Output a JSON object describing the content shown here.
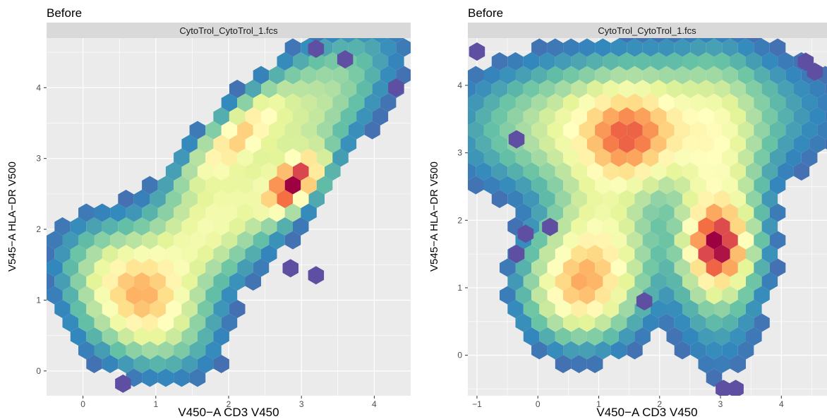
{
  "chart_data": [
    {
      "type": "heatmap",
      "subtype": "hexbin",
      "title": "Before",
      "facet": "CytoTrol_CytoTrol_1.fcs",
      "xlabel": "V450−A CD3 V450",
      "ylabel": "V545−A HLA−DR V500",
      "xlim": [
        -0.5,
        4.5
      ],
      "ylim": [
        -0.35,
        4.7
      ],
      "xticks": [
        0,
        1,
        2,
        3,
        4
      ],
      "yticks": [
        0,
        1,
        2,
        3,
        4
      ],
      "xtick_labels": [
        "0",
        "1",
        "2",
        "3",
        "4"
      ],
      "ytick_labels": [
        "0",
        "1",
        "2",
        "3",
        "4"
      ],
      "grid": true,
      "palette": [
        "#5e4fa2",
        "#3288bd",
        "#66c2a5",
        "#abdda4",
        "#e6f598",
        "#ffffbf",
        "#fee08b",
        "#fdae61",
        "#f46d43",
        "#d53e4f",
        "#9e0142"
      ],
      "density_components": [
        {
          "center": [
            0.75,
            1.05
          ],
          "spread": [
            0.42,
            0.6
          ],
          "rotation_deg": 45,
          "weight": 0.58
        },
        {
          "center": [
            1.75,
            2.05
          ],
          "spread": [
            0.95,
            0.42
          ],
          "rotation_deg": 45,
          "weight": 0.4
        },
        {
          "center": [
            2.9,
            2.65
          ],
          "spread": [
            0.32,
            0.16
          ],
          "rotation_deg": 48,
          "weight": 1.0
        },
        {
          "center": [
            2.1,
            3.3
          ],
          "spread": [
            0.55,
            0.18
          ],
          "rotation_deg": 45,
          "weight": 0.5
        },
        {
          "center": [
            3.1,
            3.7
          ],
          "spread": [
            0.85,
            0.38
          ],
          "rotation_deg": 45,
          "weight": 0.26
        }
      ],
      "outlier_cells": [
        [
          2.85,
          1.45
        ],
        [
          3.2,
          1.35
        ],
        [
          4.3,
          4.0
        ],
        [
          0.55,
          -0.18
        ],
        [
          3.2,
          4.55
        ],
        [
          3.6,
          4.4
        ]
      ]
    },
    {
      "type": "heatmap",
      "subtype": "hexbin",
      "title": "Before",
      "facet": "CytoTrol_CytoTrol_1.fcs",
      "xlabel": "V450−A CD3 V450",
      "ylabel": "V545−A HLA−DR V500",
      "xlim": [
        -1.15,
        4.75
      ],
      "ylim": [
        -0.6,
        4.7
      ],
      "xticks": [
        -1,
        0,
        1,
        2,
        3,
        4
      ],
      "yticks": [
        0,
        1,
        2,
        3,
        4
      ],
      "xtick_labels": [
        "−1",
        "0",
        "1",
        "2",
        "3",
        "4"
      ],
      "ytick_labels": [
        "0",
        "1",
        "2",
        "3",
        "4"
      ],
      "grid": true,
      "palette": [
        "#5e4fa2",
        "#3288bd",
        "#66c2a5",
        "#abdda4",
        "#e6f598",
        "#ffffbf",
        "#fee08b",
        "#fdae61",
        "#f46d43",
        "#d53e4f",
        "#9e0142"
      ],
      "density_components": [
        {
          "center": [
            2.95,
            1.6
          ],
          "spread": [
            0.3,
            0.38
          ],
          "rotation_deg": 0,
          "weight": 1.0
        },
        {
          "center": [
            2.95,
            2.2
          ],
          "spread": [
            0.45,
            1.1
          ],
          "rotation_deg": 0,
          "weight": 0.45
        },
        {
          "center": [
            0.65,
            1.0
          ],
          "spread": [
            0.5,
            0.45
          ],
          "rotation_deg": 0,
          "weight": 0.62
        },
        {
          "center": [
            1.05,
            1.7
          ],
          "spread": [
            0.55,
            0.7
          ],
          "rotation_deg": 0,
          "weight": 0.45
        },
        {
          "center": [
            1.5,
            3.2
          ],
          "spread": [
            0.5,
            0.45
          ],
          "rotation_deg": 0,
          "weight": 0.58
        },
        {
          "center": [
            0.9,
            3.35
          ],
          "spread": [
            1.2,
            0.55
          ],
          "rotation_deg": 0,
          "weight": 0.38
        },
        {
          "center": [
            2.5,
            3.6
          ],
          "spread": [
            1.3,
            0.55
          ],
          "rotation_deg": 0,
          "weight": 0.22
        }
      ],
      "outlier_cells": [
        [
          -1.0,
          4.5
        ],
        [
          -0.35,
          3.2
        ],
        [
          -0.2,
          1.8
        ],
        [
          -0.35,
          1.5
        ],
        [
          4.4,
          4.35
        ],
        [
          4.55,
          4.2
        ],
        [
          3.05,
          -0.5
        ],
        [
          3.25,
          -0.5
        ],
        [
          1.75,
          0.8
        ],
        [
          0.2,
          1.9
        ]
      ]
    }
  ]
}
